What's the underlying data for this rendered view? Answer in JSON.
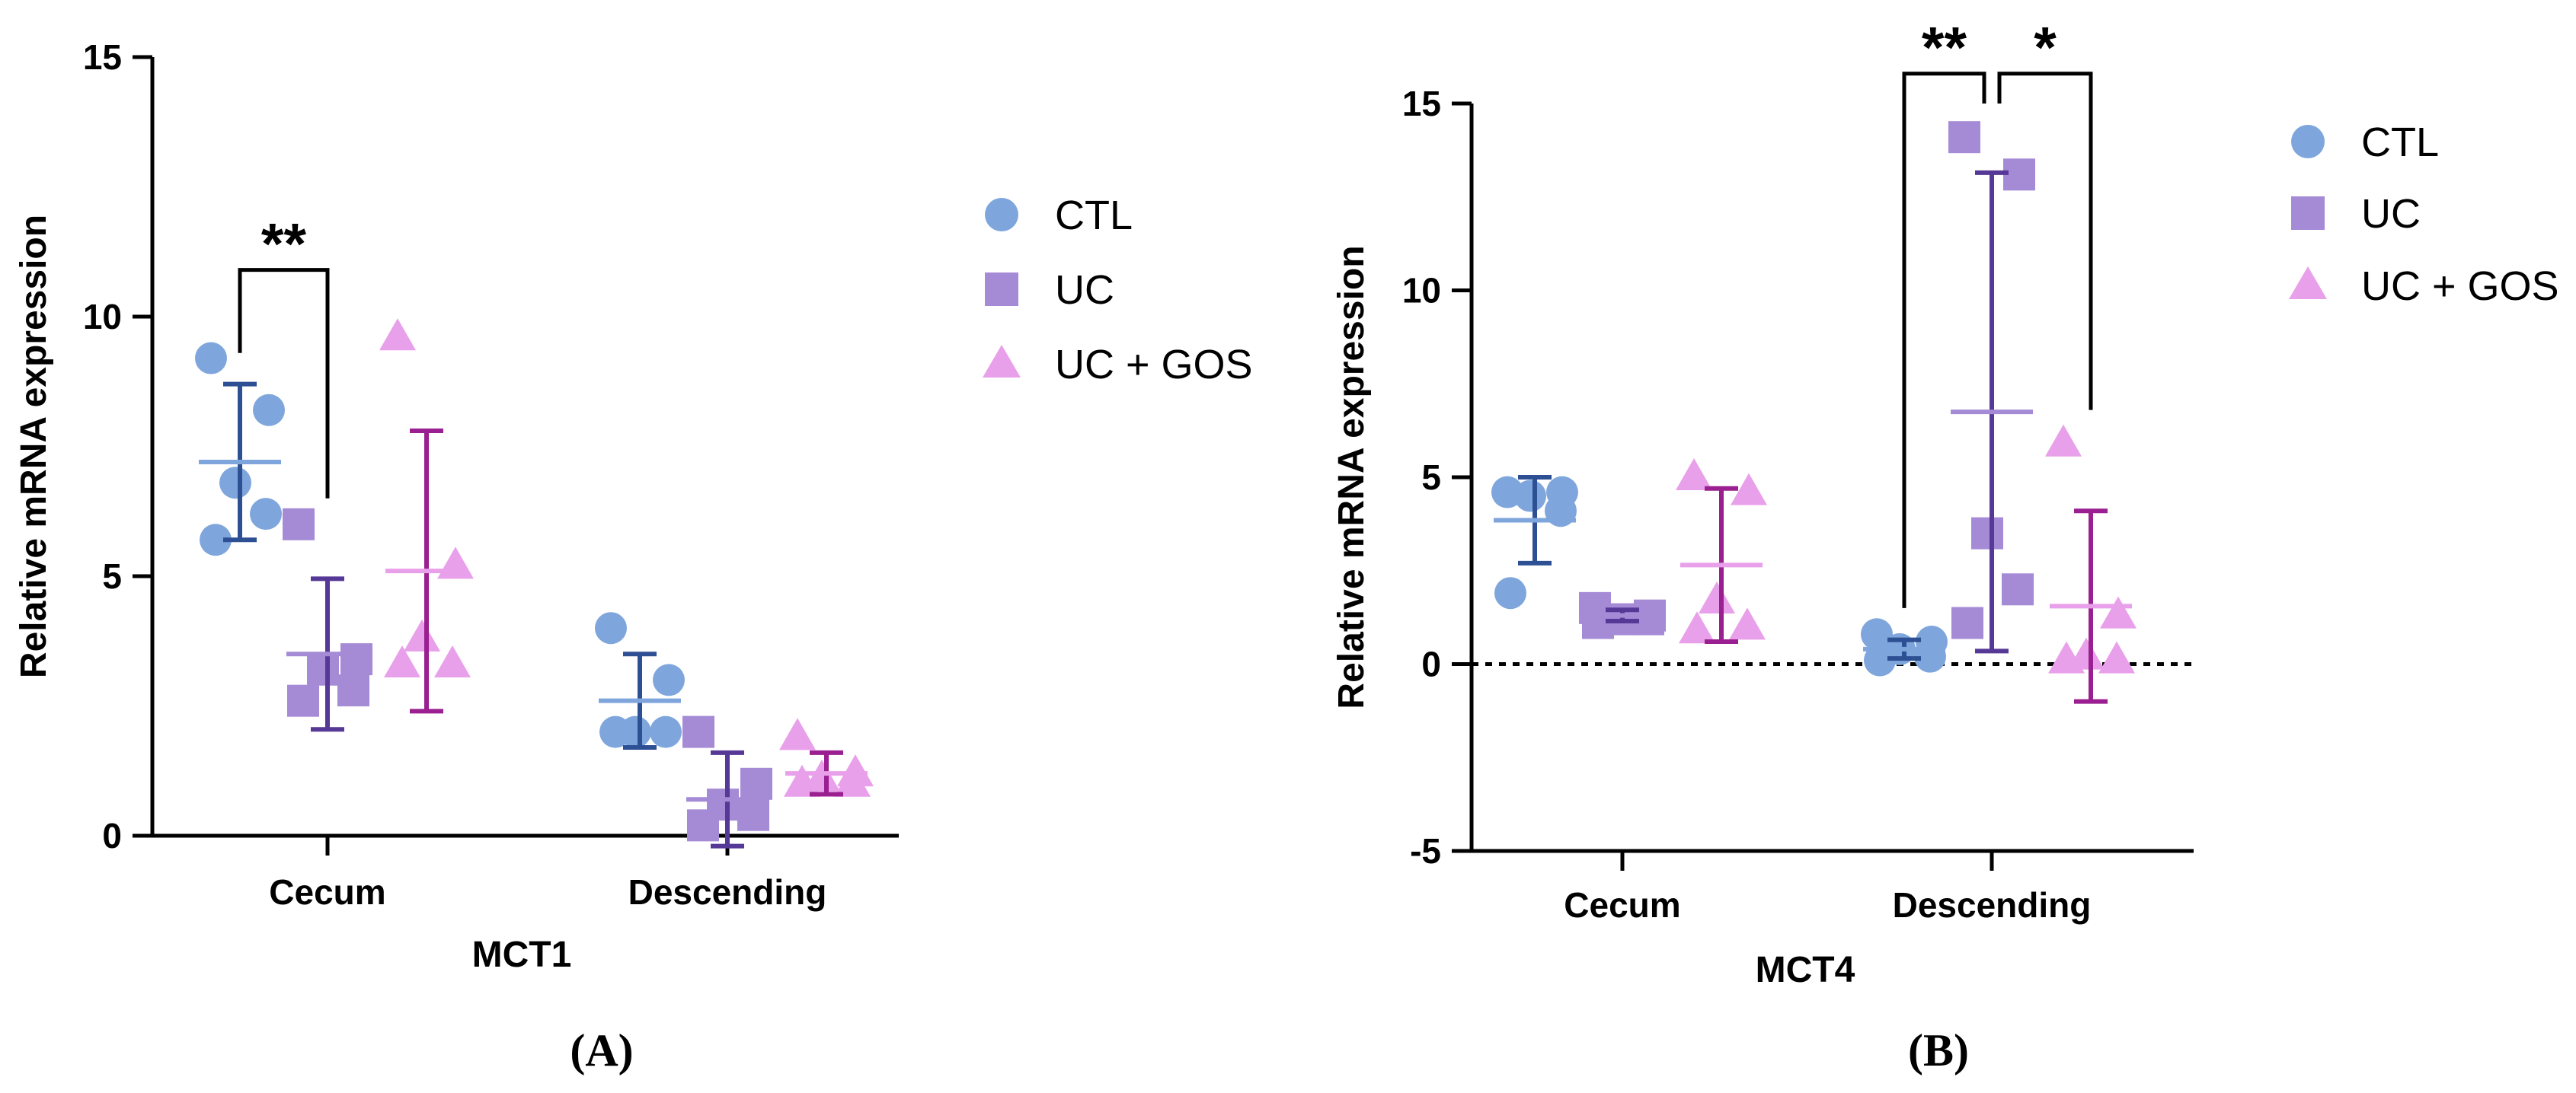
{
  "colors": {
    "CTL": "#7fa6dc",
    "CTL_bar": "#2d4f93",
    "UC": "#a58ad6",
    "UC_bar": "#563896",
    "UC + GOS": "#e9a0ea",
    "UC + GOS_bar": "#9a1f90"
  },
  "chart_data": [
    {
      "type": "scatter",
      "panel_label": "(A)",
      "xlabel": "MCT1",
      "ylabel": "Relative mRNA expression",
      "ylim": [
        0,
        15
      ],
      "yticks": [
        "0",
        "5",
        "10",
        "15"
      ],
      "categories": [
        "Cecum",
        "Descending"
      ],
      "legend": {
        "position": "right",
        "entries": [
          "CTL",
          "UC",
          "UC + GOS"
        ]
      },
      "series": [
        {
          "name": "CTL",
          "marker": "circle",
          "points": {
            "Cecum": [
              9.2,
              8.2,
              6.8,
              6.2,
              5.7
            ],
            "Descending": [
              4.0,
              3.0,
              2.0,
              2.0,
              2.0
            ]
          },
          "mean": {
            "Cecum": 7.2,
            "Descending": 2.6
          },
          "sd": {
            "Cecum": 1.5,
            "Descending": 0.9
          }
        },
        {
          "name": "UC",
          "marker": "square",
          "points": {
            "Cecum": [
              6.0,
              3.4,
              3.2,
              2.8,
              2.6
            ],
            "Descending": [
              2.0,
              1.0,
              0.6,
              0.4,
              0.2
            ]
          },
          "mean": {
            "Cecum": 3.5,
            "Descending": 0.7
          },
          "sd": {
            "Cecum": 1.45,
            "Descending": 0.9
          }
        },
        {
          "name": "UC + GOS",
          "marker": "triangle",
          "points": {
            "Cecum": [
              9.6,
              5.2,
              3.8,
              3.3,
              3.3
            ],
            "Descending": [
              1.9,
              1.2,
              1.1,
              1.0,
              1.0
            ]
          },
          "mean": {
            "Cecum": 5.1,
            "Descending": 1.2
          },
          "sd": {
            "Cecum": 2.7,
            "Descending": 0.4
          }
        }
      ],
      "brackets": [
        {
          "category": "Cecum",
          "from": "CTL",
          "to": "UC",
          "left_end": 9.3,
          "right_end": 6.5,
          "y": 10.9,
          "label": "**"
        }
      ]
    },
    {
      "type": "scatter",
      "panel_label": "(B)",
      "xlabel": "MCT4",
      "ylabel": "Relative mRNA expression",
      "ylim": [
        -5,
        15
      ],
      "yticks": [
        "-5",
        "0",
        "5",
        "10",
        "15"
      ],
      "categories": [
        "Cecum",
        "Descending"
      ],
      "reference_line": 0,
      "legend": {
        "position": "right",
        "entries": [
          "CTL",
          "UC",
          "UC + GOS"
        ]
      },
      "series": [
        {
          "name": "CTL",
          "marker": "circle",
          "points": {
            "Cecum": [
              4.6,
              4.6,
              4.5,
              4.1,
              1.9
            ],
            "Descending": [
              0.8,
              0.6,
              0.4,
              0.2,
              0.1
            ]
          },
          "mean": {
            "Cecum": 3.85,
            "Descending": 0.4
          },
          "sd": {
            "Cecum": 1.15,
            "Descending": 0.25
          }
        },
        {
          "name": "UC",
          "marker": "square",
          "points": {
            "Cecum": [
              1.5,
              1.3,
              1.2,
              1.2,
              1.1
            ],
            "Descending": [
              14.1,
              13.1,
              3.5,
              2.0,
              1.1
            ]
          },
          "mean": {
            "Cecum": 1.3,
            "Descending": 6.75
          },
          "sd": {
            "Cecum": 0.15,
            "Descending": 6.4
          }
        },
        {
          "name": "UC + GOS",
          "marker": "triangle",
          "points": {
            "Cecum": [
              5.0,
              4.6,
              1.7,
              1.0,
              0.9
            ],
            "Descending": [
              5.9,
              1.3,
              0.2,
              0.1,
              0.1
            ]
          },
          "mean": {
            "Cecum": 2.65,
            "Descending": 1.55
          },
          "sd": {
            "Cecum": 2.05,
            "Descending": 2.55
          }
        }
      ],
      "brackets": [
        {
          "category": "Descending",
          "from": "CTL",
          "to": "UC",
          "left_end": 1.5,
          "right_end": 15.0,
          "y": 15.8,
          "label": "**"
        },
        {
          "category": "Descending",
          "from": "UC",
          "to": "UC + GOS",
          "left_end": 15.0,
          "right_end": 6.8,
          "y": 15.8,
          "label": "*"
        }
      ]
    }
  ]
}
